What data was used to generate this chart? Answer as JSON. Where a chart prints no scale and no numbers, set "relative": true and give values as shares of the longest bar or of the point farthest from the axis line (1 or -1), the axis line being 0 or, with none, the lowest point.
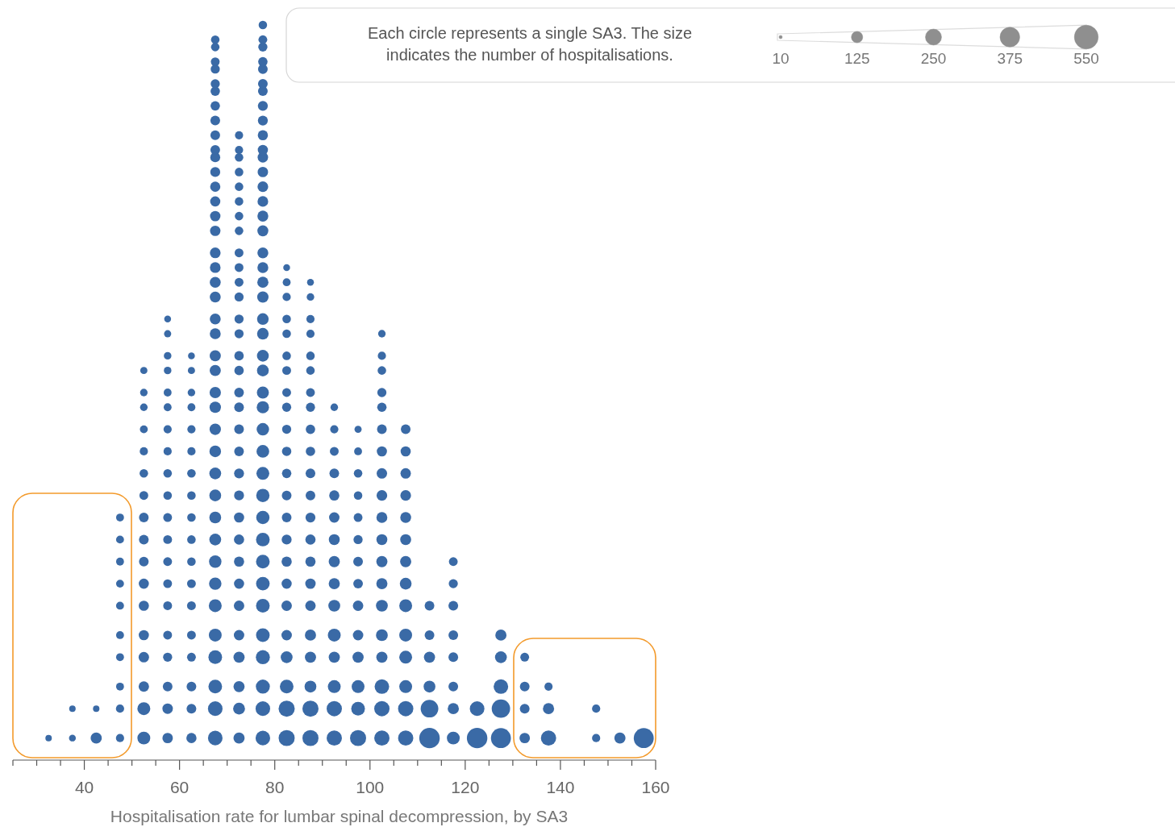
{
  "chart_data": {
    "type": "bubble",
    "relative": true,
    "color": "#3a6aa6",
    "xlabel": "Hospitalisation rate for lumbar spinal decompression, by SA3",
    "legend_title": "Each circle represents a single SA3. The size indicates the number of hospitalisations.",
    "size_legend": [
      10,
      125,
      250,
      375,
      550
    ],
    "xlim": [
      25,
      160
    ],
    "xticks": [
      {
        "value": 25,
        "label": null
      },
      {
        "value": 30,
        "label": null
      },
      {
        "value": 35,
        "label": null
      },
      40,
      {
        "value": 45,
        "label": null
      },
      {
        "value": 50,
        "label": null
      },
      {
        "value": 55,
        "label": null
      },
      60,
      {
        "value": 65,
        "label": null
      },
      {
        "value": 70,
        "label": null
      },
      {
        "value": 75,
        "label": null
      },
      80,
      {
        "value": 85,
        "label": null
      },
      {
        "value": 90,
        "label": null
      },
      {
        "value": 95,
        "label": null
      },
      100,
      {
        "value": 105,
        "label": null
      },
      {
        "value": 110,
        "label": null
      },
      {
        "value": 115,
        "label": null
      },
      120,
      {
        "value": 125,
        "label": null
      },
      {
        "value": 130,
        "label": null
      },
      {
        "value": 135,
        "label": null
      },
      140,
      {
        "value": 145,
        "label": null
      },
      {
        "value": 150,
        "label": null
      },
      {
        "value": 155,
        "label": null
      },
      160
    ],
    "series": [
      {
        "x": [
          32.5
        ],
        "values": [
          0.03
        ],
        "sizes": [
          40
        ]
      },
      {
        "x": [
          37.5,
          37.5
        ],
        "values": [
          0.03,
          0.07
        ],
        "sizes": [
          45,
          40
        ]
      },
      {
        "x": [
          42.5,
          42.5
        ],
        "values": [
          0.03,
          0.07
        ],
        "sizes": [
          120,
          40
        ]
      },
      {
        "x": [
          47.5,
          47.5,
          47.5,
          47.5,
          47.5,
          47.5,
          47.5,
          47.5,
          47.5,
          47.5
        ],
        "values": [
          0.03,
          0.07,
          0.1,
          0.14,
          0.17,
          0.21,
          0.24,
          0.27,
          0.3,
          0.33
        ],
        "sizes": [
          65,
          65,
          60,
          60,
          60,
          60,
          60,
          60,
          60,
          60
        ]
      },
      {
        "x": [
          52.5,
          52.5,
          52.5,
          52.5,
          52.5,
          52.5,
          52.5,
          52.5,
          52.5,
          52.5,
          52.5,
          52.5,
          52.5,
          52.5,
          52.5,
          52.5,
          52.5
        ],
        "values": [
          0.03,
          0.07,
          0.1,
          0.14,
          0.17,
          0.21,
          0.24,
          0.27,
          0.3,
          0.33,
          0.36,
          0.39,
          0.42,
          0.45,
          0.48,
          0.5,
          0.53
        ],
        "sizes": [
          160,
          160,
          105,
          105,
          100,
          100,
          100,
          90,
          90,
          90,
          75,
          70,
          65,
          60,
          55,
          55,
          50
        ]
      },
      {
        "x": [
          57.5,
          57.5,
          57.5,
          57.5,
          57.5,
          57.5,
          57.5,
          57.5,
          57.5,
          57.5,
          57.5,
          57.5,
          57.5,
          57.5,
          57.5,
          57.5,
          57.5,
          57.5,
          57.5,
          57.5
        ],
        "values": [
          0.03,
          0.07,
          0.1,
          0.14,
          0.17,
          0.21,
          0.24,
          0.27,
          0.3,
          0.33,
          0.36,
          0.39,
          0.42,
          0.45,
          0.48,
          0.5,
          0.53,
          0.55,
          0.58,
          0.6
        ],
        "sizes": [
          105,
          105,
          90,
          80,
          75,
          75,
          75,
          75,
          75,
          75,
          70,
          70,
          65,
          65,
          60,
          60,
          55,
          55,
          50,
          45
        ]
      },
      {
        "x": [
          62.5,
          62.5,
          62.5,
          62.5,
          62.5,
          62.5,
          62.5,
          62.5,
          62.5,
          62.5,
          62.5,
          62.5,
          62.5,
          62.5,
          62.5,
          62.5,
          62.5,
          62.5
        ],
        "values": [
          0.03,
          0.07,
          0.1,
          0.14,
          0.17,
          0.21,
          0.24,
          0.27,
          0.3,
          0.33,
          0.36,
          0.39,
          0.42,
          0.45,
          0.48,
          0.5,
          0.53,
          0.55
        ],
        "sizes": [
          100,
          90,
          90,
          75,
          75,
          75,
          75,
          70,
          70,
          70,
          70,
          70,
          65,
          65,
          60,
          55,
          50,
          45
        ]
      },
      {
        "x": [
          67.5,
          67.5,
          67.5,
          67.5,
          67.5,
          67.5,
          67.5,
          67.5,
          67.5,
          67.5,
          67.5,
          67.5,
          67.5,
          67.5,
          67.5,
          67.5,
          67.5,
          67.5,
          67.5,
          67.5,
          67.5,
          67.5,
          67.5,
          67.5,
          67.5,
          67.5,
          67.5,
          67.5,
          67.5,
          67.5,
          67.5,
          67.5,
          67.5,
          67.5,
          67.5,
          67.5,
          67.5,
          67.5,
          67.5,
          67.5
        ],
        "values": [
          0.03,
          0.07,
          0.1,
          0.14,
          0.17,
          0.21,
          0.24,
          0.27,
          0.3,
          0.33,
          0.36,
          0.39,
          0.42,
          0.45,
          0.48,
          0.5,
          0.53,
          0.55,
          0.58,
          0.6,
          0.63,
          0.65,
          0.67,
          0.69,
          0.72,
          0.74,
          0.76,
          0.78,
          0.8,
          0.82,
          0.83,
          0.85,
          0.87,
          0.89,
          0.91,
          0.92,
          0.94,
          0.95,
          0.97,
          0.98
        ],
        "sizes": [
          205,
          205,
          180,
          180,
          160,
          160,
          150,
          150,
          135,
          135,
          135,
          135,
          130,
          125,
          125,
          125,
          120,
          120,
          115,
          115,
          115,
          115,
          110,
          110,
          105,
          105,
          100,
          100,
          95,
          95,
          90,
          90,
          90,
          85,
          85,
          80,
          80,
          75,
          70,
          70
        ]
      },
      {
        "x": [
          72.5,
          72.5,
          72.5,
          72.5,
          72.5,
          72.5,
          72.5,
          72.5,
          72.5,
          72.5,
          72.5,
          72.5,
          72.5,
          72.5,
          72.5,
          72.5,
          72.5,
          72.5,
          72.5,
          72.5,
          72.5,
          72.5,
          72.5,
          72.5,
          72.5,
          72.5,
          72.5,
          72.5,
          72.5,
          72.5,
          72.5,
          72.5
        ],
        "values": [
          0.03,
          0.07,
          0.1,
          0.14,
          0.17,
          0.21,
          0.24,
          0.27,
          0.3,
          0.33,
          0.36,
          0.39,
          0.42,
          0.45,
          0.48,
          0.5,
          0.53,
          0.55,
          0.58,
          0.6,
          0.63,
          0.65,
          0.67,
          0.69,
          0.72,
          0.74,
          0.76,
          0.78,
          0.8,
          0.82,
          0.83,
          0.85
        ],
        "sizes": [
          120,
          135,
          120,
          120,
          105,
          105,
          100,
          100,
          100,
          100,
          95,
          95,
          90,
          90,
          90,
          90,
          85,
          85,
          80,
          80,
          80,
          75,
          75,
          75,
          70,
          70,
          70,
          70,
          70,
          70,
          65,
          65
        ]
      },
      {
        "x": [
          77.5,
          77.5,
          77.5,
          77.5,
          77.5,
          77.5,
          77.5,
          77.5,
          77.5,
          77.5,
          77.5,
          77.5,
          77.5,
          77.5,
          77.5,
          77.5,
          77.5,
          77.5,
          77.5,
          77.5,
          77.5,
          77.5,
          77.5,
          77.5,
          77.5,
          77.5,
          77.5,
          77.5,
          77.5,
          77.5,
          77.5,
          77.5,
          77.5,
          77.5,
          77.5,
          77.5,
          77.5,
          77.5,
          77.5,
          77.5,
          77.5
        ],
        "values": [
          0.03,
          0.07,
          0.1,
          0.14,
          0.17,
          0.21,
          0.24,
          0.27,
          0.3,
          0.33,
          0.36,
          0.39,
          0.42,
          0.45,
          0.48,
          0.5,
          0.53,
          0.55,
          0.58,
          0.6,
          0.63,
          0.65,
          0.67,
          0.69,
          0.72,
          0.74,
          0.76,
          0.78,
          0.8,
          0.82,
          0.83,
          0.85,
          0.87,
          0.89,
          0.91,
          0.92,
          0.94,
          0.95,
          0.97,
          0.98,
          1
        ],
        "sizes": [
          205,
          205,
          190,
          190,
          180,
          180,
          180,
          180,
          180,
          170,
          170,
          160,
          155,
          150,
          145,
          140,
          135,
          135,
          130,
          130,
          125,
          120,
          115,
          115,
          115,
          115,
          110,
          110,
          105,
          105,
          100,
          100,
          95,
          95,
          90,
          90,
          90,
          85,
          80,
          75,
          70
        ]
      },
      {
        "x": [
          82.5,
          82.5,
          82.5,
          82.5,
          82.5,
          82.5,
          82.5,
          82.5,
          82.5,
          82.5,
          82.5,
          82.5,
          82.5,
          82.5,
          82.5,
          82.5,
          82.5,
          82.5,
          82.5,
          82.5,
          82.5,
          82.5,
          82.5
        ],
        "values": [
          0.03,
          0.07,
          0.1,
          0.14,
          0.17,
          0.21,
          0.24,
          0.27,
          0.3,
          0.33,
          0.36,
          0.39,
          0.42,
          0.45,
          0.48,
          0.5,
          0.53,
          0.55,
          0.58,
          0.6,
          0.63,
          0.65,
          0.67
        ],
        "sizes": [
          250,
          250,
          180,
          135,
          105,
          105,
          100,
          100,
          95,
          90,
          90,
          85,
          85,
          80,
          80,
          75,
          75,
          70,
          70,
          70,
          65,
          60,
          45
        ]
      },
      {
        "x": [
          87.5,
          87.5,
          87.5,
          87.5,
          87.5,
          87.5,
          87.5,
          87.5,
          87.5,
          87.5,
          87.5,
          87.5,
          87.5,
          87.5,
          87.5,
          87.5,
          87.5,
          87.5,
          87.5,
          87.5,
          87.5,
          87.5
        ],
        "values": [
          0.03,
          0.07,
          0.1,
          0.14,
          0.17,
          0.21,
          0.24,
          0.27,
          0.3,
          0.33,
          0.36,
          0.39,
          0.42,
          0.45,
          0.48,
          0.5,
          0.53,
          0.55,
          0.58,
          0.6,
          0.63,
          0.65
        ],
        "sizes": [
          250,
          250,
          135,
          120,
          120,
          105,
          105,
          100,
          100,
          95,
          90,
          90,
          85,
          85,
          80,
          75,
          70,
          70,
          65,
          65,
          55,
          45
        ]
      },
      {
        "x": [
          92.5,
          92.5,
          92.5,
          92.5,
          92.5,
          92.5,
          92.5,
          92.5,
          92.5,
          92.5,
          92.5,
          92.5,
          92.5,
          92.5,
          92.5
        ],
        "values": [
          0.03,
          0.07,
          0.1,
          0.14,
          0.17,
          0.21,
          0.24,
          0.27,
          0.3,
          0.33,
          0.36,
          0.39,
          0.42,
          0.45,
          0.48
        ],
        "sizes": [
          225,
          225,
          160,
          120,
          160,
          135,
          120,
          120,
          115,
          105,
          100,
          90,
          75,
          65,
          55
        ]
      },
      {
        "x": [
          97.5,
          97.5,
          97.5,
          97.5,
          97.5,
          97.5,
          97.5,
          97.5,
          97.5,
          97.5,
          97.5,
          97.5,
          97.5,
          97.5
        ],
        "values": [
          0.03,
          0.07,
          0.1,
          0.14,
          0.17,
          0.21,
          0.24,
          0.27,
          0.3,
          0.33,
          0.36,
          0.39,
          0.42,
          0.45
        ],
        "sizes": [
          250,
          180,
          160,
          120,
          105,
          105,
          90,
          90,
          80,
          75,
          70,
          70,
          60,
          50
        ]
      },
      {
        "x": [
          102.5,
          102.5,
          102.5,
          102.5,
          102.5,
          102.5,
          102.5,
          102.5,
          102.5,
          102.5,
          102.5,
          102.5,
          102.5,
          102.5,
          102.5,
          102.5,
          102.5,
          102.5,
          102.5
        ],
        "values": [
          0.03,
          0.07,
          0.1,
          0.14,
          0.17,
          0.21,
          0.24,
          0.27,
          0.3,
          0.33,
          0.36,
          0.39,
          0.42,
          0.45,
          0.48,
          0.5,
          0.53,
          0.55,
          0.58
        ],
        "sizes": [
          225,
          225,
          205,
          120,
          135,
          135,
          120,
          120,
          115,
          115,
          110,
          105,
          100,
          90,
          85,
          80,
          70,
          65,
          55
        ]
      },
      {
        "x": [
          107.5,
          107.5,
          107.5,
          107.5,
          107.5,
          107.5,
          107.5,
          107.5,
          107.5,
          107.5,
          107.5,
          107.5,
          107.5,
          107.5
        ],
        "values": [
          0.03,
          0.07,
          0.1,
          0.14,
          0.17,
          0.21,
          0.24,
          0.27,
          0.3,
          0.33,
          0.36,
          0.39,
          0.42,
          0.45
        ],
        "sizes": [
          225,
          225,
          160,
          160,
          160,
          160,
          135,
          120,
          115,
          115,
          110,
          105,
          100,
          90
        ]
      },
      {
        "x": [
          112.5,
          112.5,
          112.5,
          112.5,
          112.5,
          112.5
        ],
        "values": [
          0.03,
          0.07,
          0.1,
          0.14,
          0.17,
          0.21
        ],
        "sizes": [
          405,
          300,
          135,
          120,
          90,
          90
        ]
      },
      {
        "x": [
          117.5,
          117.5,
          117.5,
          117.5,
          117.5,
          117.5,
          117.5,
          117.5
        ],
        "values": [
          0.03,
          0.07,
          0.1,
          0.14,
          0.17,
          0.21,
          0.24,
          0.27
        ],
        "sizes": [
          160,
          120,
          90,
          90,
          90,
          90,
          80,
          75
        ]
      },
      {
        "x": [
          122.5,
          122.5
        ],
        "values": [
          0.03,
          0.07
        ],
        "sizes": [
          405,
          205
        ]
      },
      {
        "x": [
          127.5,
          127.5,
          127.5,
          127.5,
          127.5
        ],
        "values": [
          0.03,
          0.07,
          0.1,
          0.14,
          0.17
        ],
        "sizes": [
          385,
          325,
          205,
          135,
          120
        ]
      },
      {
        "x": [
          132.5,
          132.5,
          132.5,
          132.5
        ],
        "values": [
          0.03,
          0.07,
          0.1,
          0.14
        ],
        "sizes": [
          105,
          90,
          90,
          75
        ]
      },
      {
        "x": [
          137.5,
          137.5,
          137.5
        ],
        "values": [
          0.03,
          0.07,
          0.1
        ],
        "sizes": [
          225,
          120,
          65
        ]
      },
      {
        "x": [
          147.5,
          147.5
        ],
        "values": [
          0.03,
          0.07
        ],
        "sizes": [
          65,
          65
        ]
      },
      {
        "x": [
          152.5
        ],
        "values": [
          0.03
        ],
        "sizes": [
          120
        ]
      },
      {
        "x": [
          157.5
        ],
        "values": [
          0.03
        ],
        "sizes": [
          385
        ]
      }
    ]
  }
}
